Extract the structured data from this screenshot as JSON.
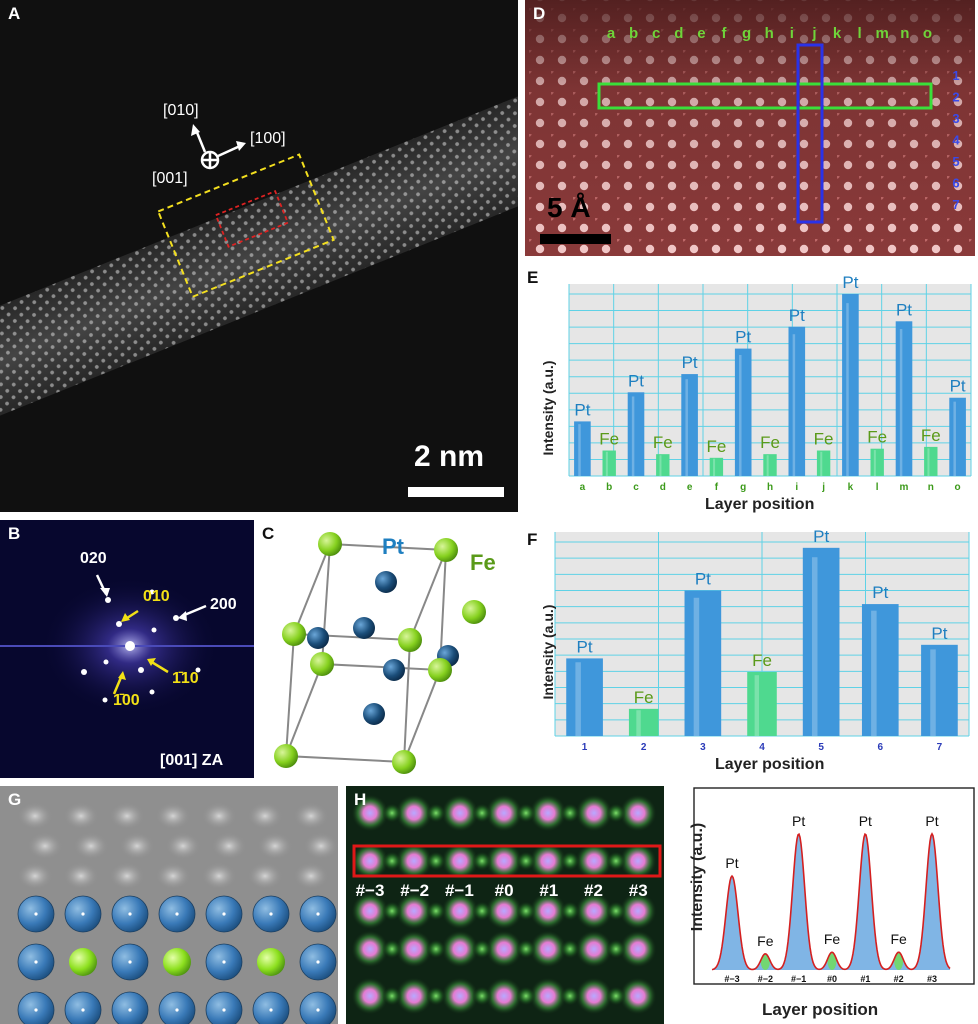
{
  "panels": {
    "A": {
      "label": "A",
      "directions": [
        "[010]",
        "[100]",
        "[001]"
      ],
      "scalebar": "2 nm"
    },
    "B": {
      "label": "B",
      "spots": [
        "020",
        "200",
        "010",
        "100",
        "1̄10",
        "1̄00"
      ],
      "zone_axis": "[001] ZA"
    },
    "C": {
      "label": "C",
      "species": [
        "Pt",
        "Fe"
      ]
    },
    "D": {
      "label": "D",
      "columns": [
        "a",
        "b",
        "c",
        "d",
        "e",
        "f",
        "g",
        "h",
        "i",
        "j",
        "k",
        "l",
        "m",
        "n",
        "o"
      ],
      "rows": [
        "1",
        "2",
        "3",
        "4",
        "5",
        "6",
        "7"
      ],
      "scalebar": "5 Å"
    },
    "E": {
      "label": "E",
      "ylabel": "Intensity (a.u.)",
      "xlabel": "Layer position"
    },
    "F": {
      "label": "F",
      "ylabel": "Intensity (a.u.)",
      "xlabel": "Layer position"
    },
    "G": {
      "label": "G"
    },
    "H": {
      "label": "H",
      "positions": [
        "#−3",
        "#−2",
        "#−1",
        "#0",
        "#1",
        "#2",
        "#3"
      ],
      "ylabel": "Intensity (a.u.)",
      "xlabel": "Layer position"
    }
  },
  "chart_data": [
    {
      "panel": "E",
      "type": "bar",
      "categories": [
        "a",
        "b",
        "c",
        "d",
        "e",
        "f",
        "g",
        "h",
        "i",
        "j",
        "k",
        "l",
        "m",
        "n",
        "o"
      ],
      "values": [
        0.3,
        0.14,
        0.46,
        0.12,
        0.56,
        0.1,
        0.7,
        0.12,
        0.82,
        0.14,
        1.0,
        0.15,
        0.85,
        0.16,
        0.43
      ],
      "labels": [
        "Pt",
        "Fe",
        "Pt",
        "Fe",
        "Pt",
        "Fe",
        "Pt",
        "Fe",
        "Pt",
        "Fe",
        "Pt",
        "Fe",
        "Pt",
        "Fe",
        "Pt"
      ],
      "xlabel": "Layer position",
      "ylabel": "Intensity (a.u.)"
    },
    {
      "panel": "F",
      "type": "bar",
      "categories": [
        "1",
        "2",
        "3",
        "4",
        "5",
        "6",
        "7"
      ],
      "values": [
        0.4,
        0.14,
        0.75,
        0.33,
        0.97,
        0.68,
        0.47
      ],
      "labels": [
        "Pt",
        "Fe",
        "Pt",
        "Fe",
        "Pt",
        "Pt",
        "Pt"
      ],
      "xlabel": "Layer position",
      "ylabel": "Intensity (a.u.)"
    },
    {
      "panel": "H",
      "type": "line",
      "categories": [
        "#−3",
        "#−2",
        "#−1",
        "#0",
        "#1",
        "#2",
        "#3"
      ],
      "values": [
        0.58,
        0.1,
        0.84,
        0.11,
        0.84,
        0.11,
        0.84
      ],
      "labels": [
        "Pt",
        "Fe",
        "Pt",
        "Fe",
        "Pt",
        "Fe",
        "Pt"
      ],
      "xlabel": "Layer position",
      "ylabel": "Intensity (a.u.)"
    }
  ],
  "colors": {
    "pt_bar": "#3f97db",
    "fe_bar": "#4fd98f",
    "pt_text": "#1f7fc0",
    "fe_text": "#5a9a19",
    "pt_atom": "#1b4e7a",
    "fe_atom": "#86d11f",
    "grid": "#5fd2e6",
    "haadf_bg": "#111111",
    "red_map": "#7a2e2e"
  }
}
